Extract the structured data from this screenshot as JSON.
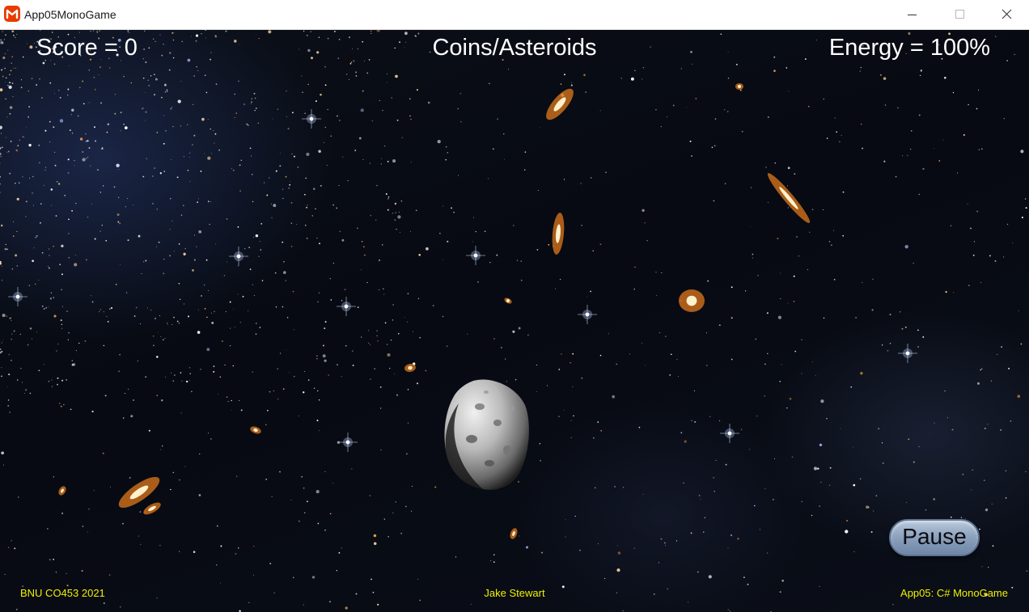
{
  "window": {
    "title": "App05MonoGame",
    "icon": "monogame-logo-icon",
    "accent_color": "#e73c00",
    "controls": [
      "minimize-icon",
      "maximize-icon",
      "close-icon"
    ]
  },
  "hud": {
    "score": "Score = 0",
    "game_title": "Coins/Asteroids",
    "energy": "Energy = 100%"
  },
  "buttons": {
    "pause_label": "Pause"
  },
  "footer": {
    "left": "BNU CO453 2021",
    "center": "Jake Stewart",
    "right": "App05: C# MonoGame",
    "text_color": "#f0f000"
  },
  "scene": {
    "background": "starfield-with-galaxies",
    "sprite": "asteroid"
  }
}
